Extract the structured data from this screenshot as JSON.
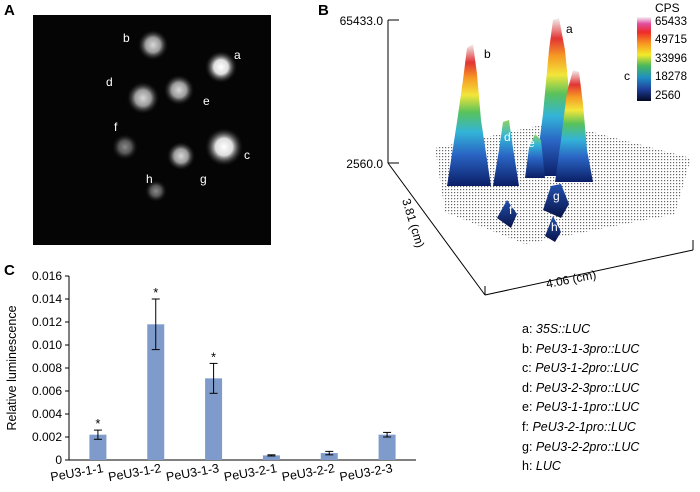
{
  "panels": {
    "a": "A",
    "b": "B",
    "c": "C"
  },
  "panel_a": {
    "spots": [
      {
        "id": "a",
        "label": "a"
      },
      {
        "id": "b",
        "label": "b"
      },
      {
        "id": "c",
        "label": "c"
      },
      {
        "id": "d",
        "label": "d"
      },
      {
        "id": "e",
        "label": "e"
      },
      {
        "id": "f",
        "label": "f"
      },
      {
        "id": "g",
        "label": "g"
      },
      {
        "id": "h",
        "label": "h"
      }
    ]
  },
  "panel_b": {
    "z_top": "65433.0",
    "z_bottom": "2560.0",
    "y_axis": "3.81 (cm)",
    "x_axis": "4.06 (cm)",
    "colorbar_title": "CPS",
    "colorbar_ticks": [
      "65433",
      "49715",
      "33996",
      "18278",
      "2560"
    ],
    "peak_labels": [
      "a",
      "b",
      "c",
      "d",
      "e",
      "f",
      "g",
      "h"
    ]
  },
  "legend": [
    {
      "key": "a:",
      "text": "35S::LUC"
    },
    {
      "key": "b:",
      "text": "PeU3-1-3pro::LUC"
    },
    {
      "key": "c:",
      "text": "PeU3-1-2pro::LUC"
    },
    {
      "key": "d:",
      "text": "PeU3-2-3pro::LUC"
    },
    {
      "key": "e:",
      "text": "PeU3-1-1pro::LUC"
    },
    {
      "key": "f:",
      "text": "PeU3-2-1pro::LUC"
    },
    {
      "key": "g:",
      "text": "PeU3-2-2pro::LUC"
    },
    {
      "key": "h:",
      "text": "LUC"
    }
  ],
  "chart_data": {
    "type": "bar",
    "ylabel": "Relative luminescence",
    "xlabel": "",
    "ylim": [
      0,
      0.016
    ],
    "yticks": [
      "0",
      "0.002",
      "0.004",
      "0.006",
      "0.008",
      "0.010",
      "0.012",
      "0.014",
      "0.016"
    ],
    "categories": [
      "PeU3-1-1",
      "PeU3-1-2",
      "PeU3-1-3",
      "PeU3-2-1",
      "PeU3-2-2",
      "PeU3-2-3"
    ],
    "values": [
      0.0022,
      0.0118,
      0.0071,
      0.0004,
      0.0006,
      0.0022
    ],
    "errors": [
      0.0004,
      0.0022,
      0.0013,
      5e-05,
      0.00015,
      0.0002
    ],
    "significance": [
      "*",
      "*",
      "*",
      "",
      "",
      ""
    ],
    "bar_color": "#7f9bcb"
  }
}
